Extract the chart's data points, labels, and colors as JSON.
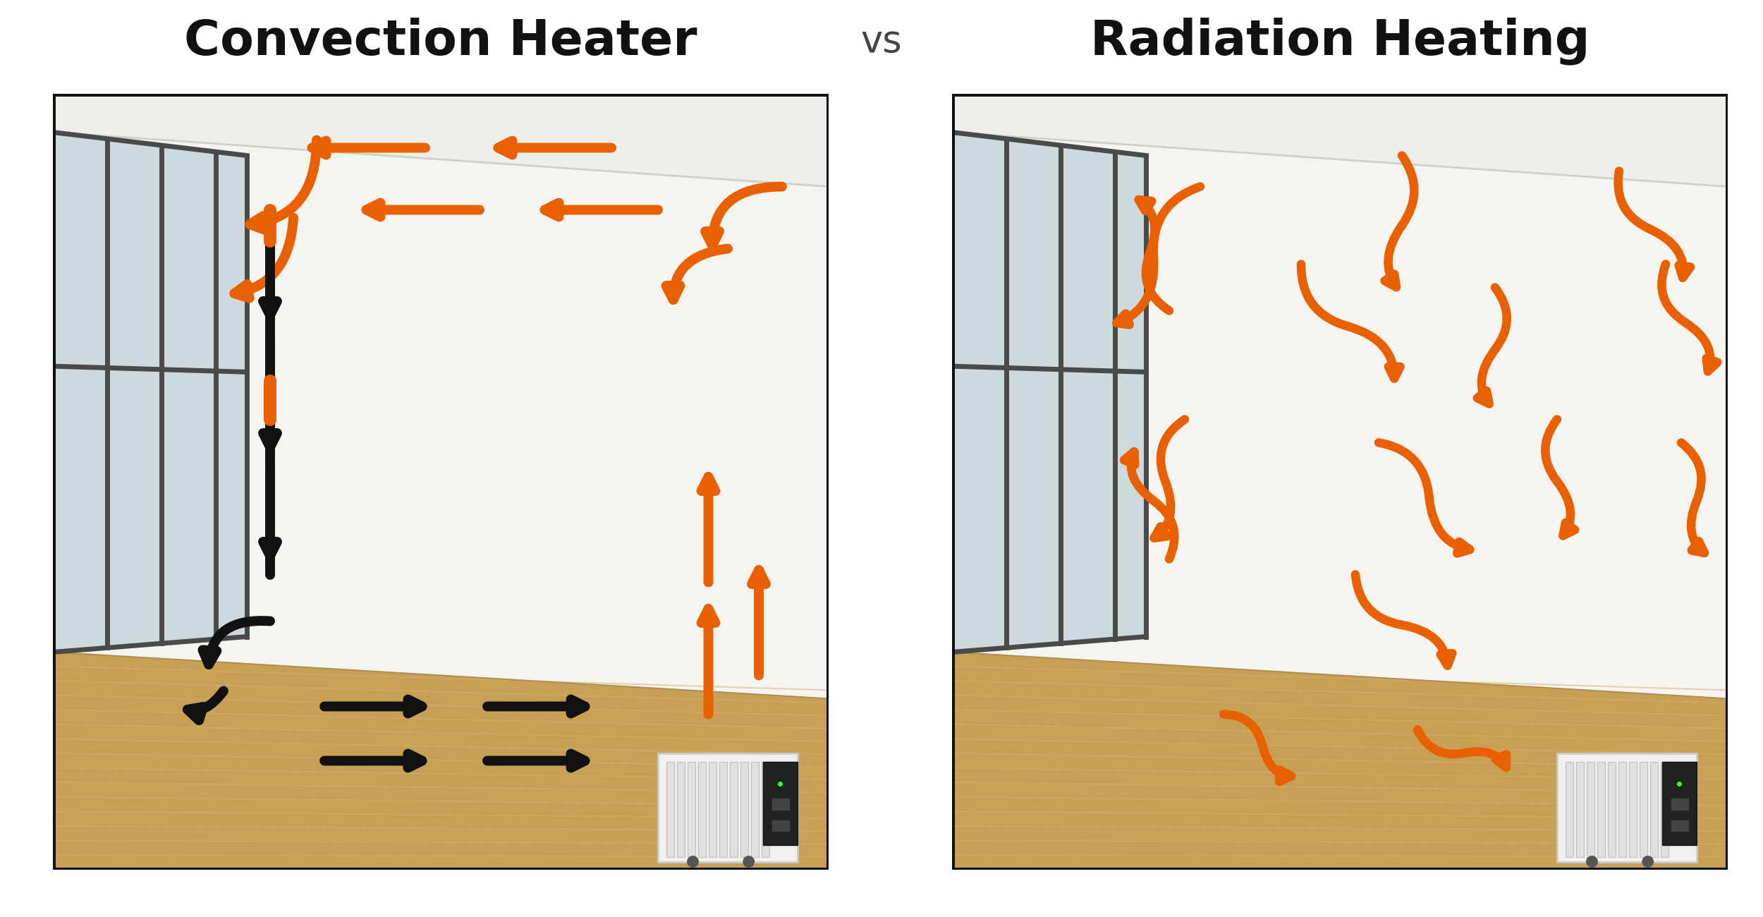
{
  "title_left": "Convection Heater",
  "title_vs": "vs",
  "title_right": "Radiation Heating",
  "title_fontsize": 50,
  "vs_fontsize": 38,
  "bg_color": "#ffffff",
  "orange": "#E86000",
  "black": "#111111",
  "ceiling_color": "#f0eeea",
  "wall_color": "#f5f4f0",
  "right_wall_color": "#e8e6e0",
  "floor_color": "#c8a060",
  "floor_light_color": "#d4ae75",
  "window_glass": "#b8c8cc",
  "window_frame": "#555555",
  "lw_arrow": 10,
  "ms_arrow": 36,
  "lw_arrow_r": 9,
  "ms_arrow_r": 30
}
